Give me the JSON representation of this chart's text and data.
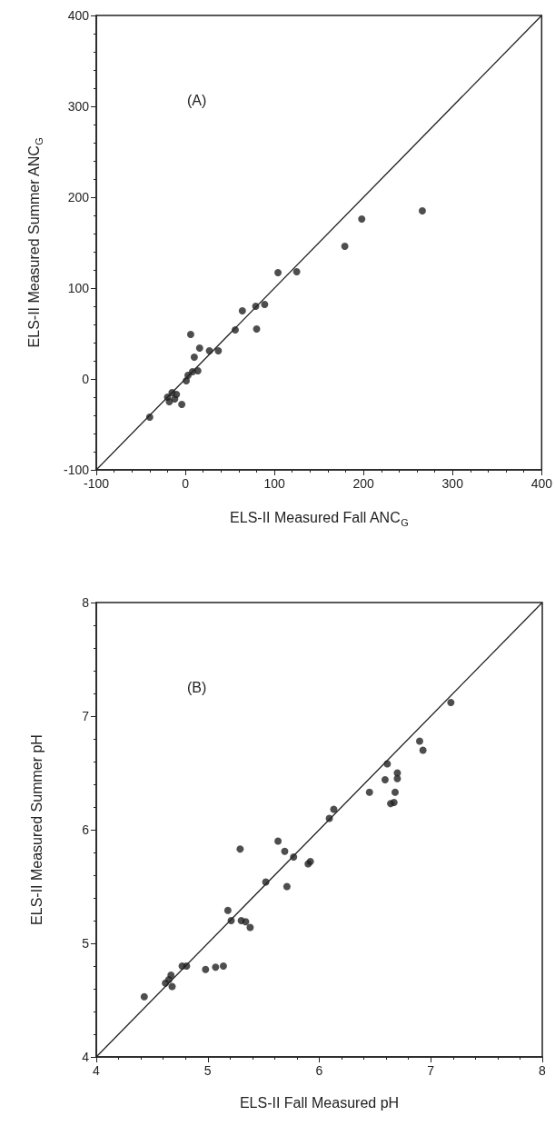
{
  "chart_data": [
    {
      "type": "scatter",
      "xlabel": "ELS-II Measured Fall ANC$_{G}$",
      "ylabel": "ELS-II Measured Summer ANC$_{G}$",
      "annotations": [
        "(A)"
      ],
      "xlim": [
        -100,
        400
      ],
      "ylim": [
        -100,
        400
      ],
      "xticks": [
        -100,
        0,
        100,
        200,
        300,
        400
      ],
      "yticks": [
        -100,
        0,
        100,
        200,
        300,
        400
      ],
      "grid": false,
      "marker": "circle",
      "series": [
        {
          "color": "#222222",
          "x": [
            -40,
            179,
            198,
            266,
            104,
            125,
            64,
            79,
            89,
            80,
            56,
            27,
            37,
            6,
            16,
            10,
            14,
            3,
            1,
            8,
            -20,
            -15,
            -10,
            -12,
            -18,
            -4
          ],
          "values": [
            -42,
            146,
            176,
            185,
            117,
            118,
            75,
            80,
            82,
            55,
            54,
            31,
            31,
            49,
            34,
            24,
            9,
            4,
            -2,
            8,
            -20,
            -15,
            -17,
            -22,
            -25,
            -28
          ]
        },
        {
          "type": "line",
          "color": "#222222",
          "marker": "none",
          "x": [
            -100,
            400
          ],
          "values": [
            -100,
            400
          ]
        }
      ]
    },
    {
      "type": "scatter",
      "xlabel": "ELS-II Fall Measured pH",
      "ylabel": "ELS-II Measured Summer pH",
      "annotations": [
        "(B)"
      ],
      "xlim": [
        4,
        8
      ],
      "ylim": [
        4,
        8
      ],
      "xticks": [
        4,
        5,
        6,
        7,
        8
      ],
      "yticks": [
        4,
        5,
        6,
        7,
        8
      ],
      "grid": false,
      "marker": "circle",
      "series": [
        {
          "color": "#222222",
          "x": [
            4.43,
            4.62,
            4.67,
            4.68,
            4.65,
            4.77,
            4.81,
            4.98,
            5.07,
            5.14,
            5.18,
            5.21,
            5.29,
            5.3,
            5.34,
            5.38,
            5.52,
            5.63,
            5.69,
            5.77,
            5.71,
            5.9,
            5.92,
            7.18,
            6.9,
            6.93,
            6.61,
            6.59,
            6.7,
            6.7,
            6.45,
            6.68,
            6.64,
            6.67,
            6.13,
            6.09
          ],
          "values": [
            4.53,
            4.65,
            4.72,
            4.62,
            4.68,
            4.8,
            4.8,
            4.77,
            4.79,
            4.8,
            5.29,
            5.2,
            5.83,
            5.2,
            5.19,
            5.14,
            5.54,
            5.9,
            5.81,
            5.76,
            5.5,
            5.7,
            5.72,
            7.12,
            6.78,
            6.7,
            6.58,
            6.44,
            6.5,
            6.45,
            6.33,
            6.33,
            6.23,
            6.24,
            6.18,
            6.1
          ]
        },
        {
          "type": "line",
          "color": "#222222",
          "marker": "none",
          "x": [
            4,
            8
          ],
          "values": [
            4,
            8
          ]
        }
      ]
    }
  ]
}
